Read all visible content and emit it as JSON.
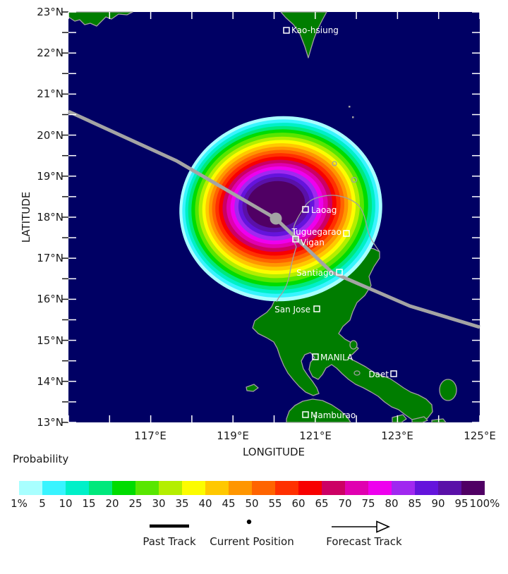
{
  "map": {
    "ylabel": "LATITUDE",
    "xlabel": "LONGITUDE",
    "lat_tick_labels": [
      "23°N",
      "22°N",
      "21°N",
      "20°N",
      "19°N",
      "18°N",
      "17°N",
      "16°N",
      "15°N",
      "14°N",
      "13°N"
    ],
    "lon_tick_labels": [
      "117°E",
      "119°E",
      "121°E",
      "123°E",
      "125°E"
    ],
    "lat_range_deg": [
      13,
      23
    ],
    "lon_range_deg": [
      115,
      125
    ],
    "colors": {
      "ocean": "#000064",
      "land": "#007d00",
      "coastline": "#a0a0a0",
      "track": "#a4a4a4",
      "city_label": "#ffffff"
    },
    "cities": [
      {
        "name": "Kao-hsiung",
        "lon": 120.3,
        "lat": 22.6,
        "label_side": "right"
      },
      {
        "name": "Laoag",
        "lon": 120.8,
        "lat": 18.2,
        "label_side": "right"
      },
      {
        "name": "Tuguegarao",
        "lon": 121.8,
        "lat": 17.6,
        "label_side": "left"
      },
      {
        "name": "Vigan",
        "lon": 120.5,
        "lat": 17.5,
        "label_side": "right"
      },
      {
        "name": "Santiago",
        "lon": 121.6,
        "lat": 16.7,
        "label_side": "left"
      },
      {
        "name": "San Jose",
        "lon": 121.0,
        "lat": 15.8,
        "label_side": "left"
      },
      {
        "name": "MANILA",
        "lon": 121.0,
        "lat": 14.6,
        "label_side": "right"
      },
      {
        "name": "Daet",
        "lon": 122.9,
        "lat": 14.2,
        "label_side": "left"
      },
      {
        "name": "Mamburao",
        "lon": 120.8,
        "lat": 13.2,
        "label_side": "right"
      }
    ],
    "storm": {
      "current_position": {
        "lon": 120.0,
        "lat": 18.0
      },
      "probability_levels_pct": [
        1,
        5,
        10,
        15,
        20,
        25,
        30,
        35,
        40,
        45,
        50,
        55,
        60,
        65,
        70,
        75,
        80,
        85,
        90,
        95
      ],
      "max_probability_location": {
        "lon": 120.0,
        "lat": 18.1
      }
    },
    "track_points_lonlat": {
      "past": [
        [
          115.0,
          20.6
        ],
        [
          117.6,
          19.4
        ],
        [
          120.0,
          18.0
        ]
      ],
      "forecast": [
        [
          120.0,
          18.0
        ],
        [
          121.4,
          16.7
        ],
        [
          123.3,
          15.8
        ],
        [
          125.0,
          15.3
        ]
      ]
    }
  },
  "colorbar": {
    "title": "Probability",
    "tick_labels": [
      "1%",
      "5",
      "10",
      "15",
      "20",
      "25",
      "30",
      "35",
      "40",
      "45",
      "50",
      "55",
      "60",
      "65",
      "70",
      "75",
      "80",
      "85",
      "90",
      "95",
      "100%"
    ],
    "colors": [
      "#a8ffff",
      "#38f4ff",
      "#00f0c8",
      "#00e87c",
      "#00dc00",
      "#58e600",
      "#b4ee00",
      "#fcfc00",
      "#ffc800",
      "#ff9600",
      "#ff6400",
      "#ff3000",
      "#f80000",
      "#cc0064",
      "#e000b0",
      "#ee00ee",
      "#a028f0",
      "#6414dc",
      "#5a10a8",
      "#500064"
    ]
  },
  "track_legend": {
    "items": [
      {
        "label": "Past Track",
        "symbol": "thick-line"
      },
      {
        "label": "Current Position",
        "symbol": "dot"
      },
      {
        "label": "Forecast Track",
        "symbol": "open-arrow"
      }
    ]
  }
}
